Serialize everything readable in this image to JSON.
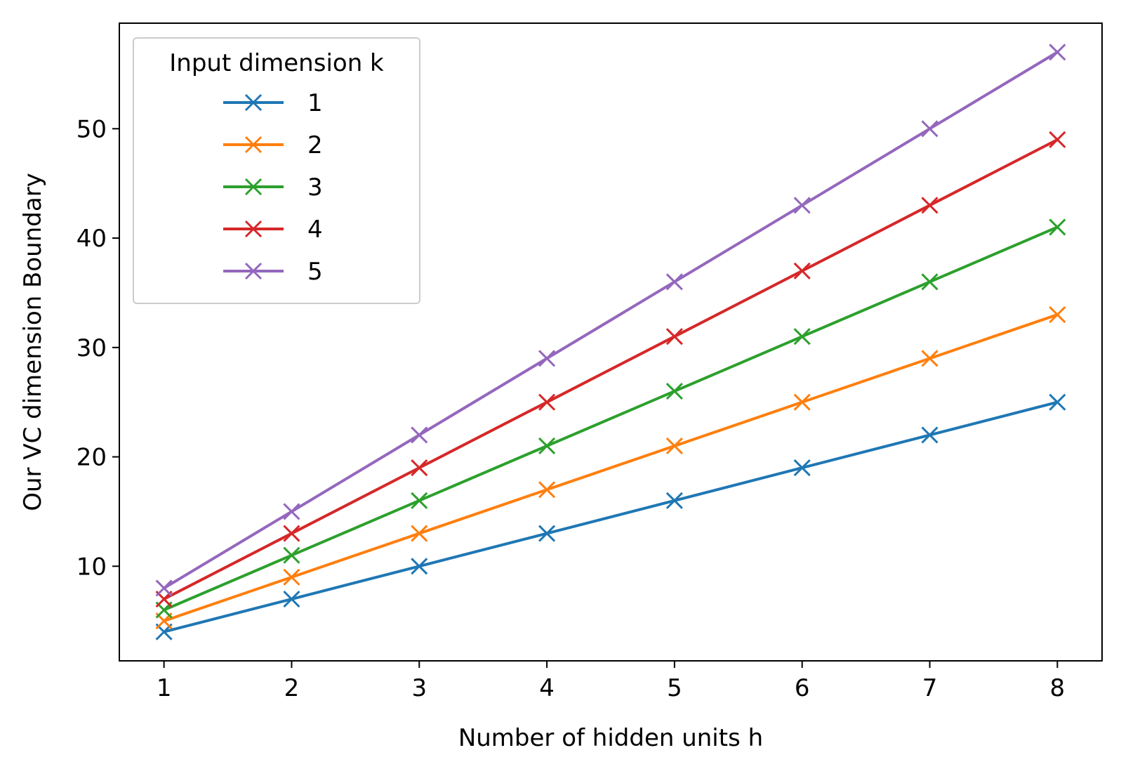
{
  "chart_data": {
    "type": "line",
    "title": "",
    "xlabel": "Number of hidden units h",
    "ylabel": "Our VC dimension Boundary",
    "x": [
      1,
      2,
      3,
      4,
      5,
      6,
      7,
      8
    ],
    "xticks": [
      "1",
      "2",
      "3",
      "4",
      "5",
      "6",
      "7",
      "8"
    ],
    "yticks": [
      "10",
      "20",
      "30",
      "40",
      "50"
    ],
    "xlim": [
      0.65,
      8.35
    ],
    "ylim": [
      1.35,
      59.65
    ],
    "grid": false,
    "marker": "x",
    "legend": {
      "title": "Input dimension k",
      "placement": "upper left"
    },
    "series": [
      {
        "name": "1",
        "color": "#1f77b4",
        "values": [
          4,
          7,
          10,
          13,
          16,
          19,
          22,
          25
        ]
      },
      {
        "name": "2",
        "color": "#ff7f0e",
        "values": [
          5,
          9,
          13,
          17,
          21,
          25,
          29,
          33
        ]
      },
      {
        "name": "3",
        "color": "#2ca02c",
        "values": [
          6,
          11,
          16,
          21,
          26,
          31,
          36,
          41
        ]
      },
      {
        "name": "4",
        "color": "#d62728",
        "values": [
          7,
          13,
          19,
          25,
          31,
          37,
          43,
          49
        ]
      },
      {
        "name": "5",
        "color": "#9467bd",
        "values": [
          8,
          15,
          22,
          29,
          36,
          43,
          50,
          57
        ]
      }
    ]
  }
}
